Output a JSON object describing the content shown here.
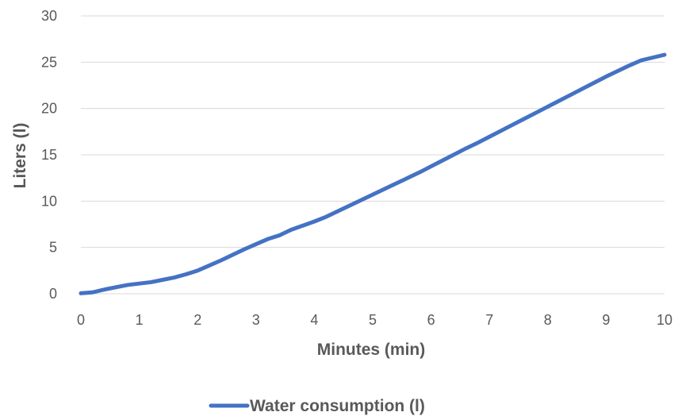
{
  "chart_data": {
    "type": "line",
    "title": "",
    "xlabel": "Minutes (min)",
    "ylabel": "Liters (l)",
    "xlim": [
      0,
      10
    ],
    "ylim": [
      0,
      30
    ],
    "x_ticks": [
      "0",
      "1",
      "2",
      "3",
      "4",
      "5",
      "6",
      "7",
      "8",
      "9",
      "10"
    ],
    "y_ticks": [
      "0",
      "5",
      "10",
      "15",
      "20",
      "25",
      "30"
    ],
    "grid": "horizontal",
    "legend_position": "bottom",
    "series": [
      {
        "name": "Water consumption (l)",
        "color": "#4472c4",
        "points": [
          [
            0,
            0.05
          ],
          [
            0.2,
            0.15
          ],
          [
            0.4,
            0.45
          ],
          [
            0.6,
            0.7
          ],
          [
            0.8,
            0.95
          ],
          [
            1.0,
            1.1
          ],
          [
            1.2,
            1.25
          ],
          [
            1.4,
            1.5
          ],
          [
            1.6,
            1.75
          ],
          [
            1.8,
            2.1
          ],
          [
            2.0,
            2.5
          ],
          [
            2.2,
            3.05
          ],
          [
            2.4,
            3.6
          ],
          [
            2.6,
            4.2
          ],
          [
            2.8,
            4.8
          ],
          [
            3.0,
            5.35
          ],
          [
            3.2,
            5.9
          ],
          [
            3.4,
            6.3
          ],
          [
            3.6,
            6.9
          ],
          [
            3.8,
            7.35
          ],
          [
            4.0,
            7.8
          ],
          [
            4.2,
            8.3
          ],
          [
            4.4,
            8.9
          ],
          [
            4.6,
            9.5
          ],
          [
            4.8,
            10.1
          ],
          [
            5.0,
            10.7
          ],
          [
            5.2,
            11.3
          ],
          [
            5.4,
            11.9
          ],
          [
            5.6,
            12.5
          ],
          [
            5.8,
            13.1
          ],
          [
            6.0,
            13.75
          ],
          [
            6.2,
            14.4
          ],
          [
            6.4,
            15.05
          ],
          [
            6.6,
            15.7
          ],
          [
            6.8,
            16.3
          ],
          [
            7.0,
            16.95
          ],
          [
            7.2,
            17.6
          ],
          [
            7.4,
            18.25
          ],
          [
            7.6,
            18.9
          ],
          [
            7.8,
            19.55
          ],
          [
            8.0,
            20.2
          ],
          [
            8.2,
            20.85
          ],
          [
            8.4,
            21.5
          ],
          [
            8.6,
            22.15
          ],
          [
            8.8,
            22.8
          ],
          [
            9.0,
            23.45
          ],
          [
            9.2,
            24.05
          ],
          [
            9.4,
            24.65
          ],
          [
            9.6,
            25.2
          ],
          [
            9.8,
            25.5
          ],
          [
            10.0,
            25.8
          ]
        ]
      }
    ]
  }
}
